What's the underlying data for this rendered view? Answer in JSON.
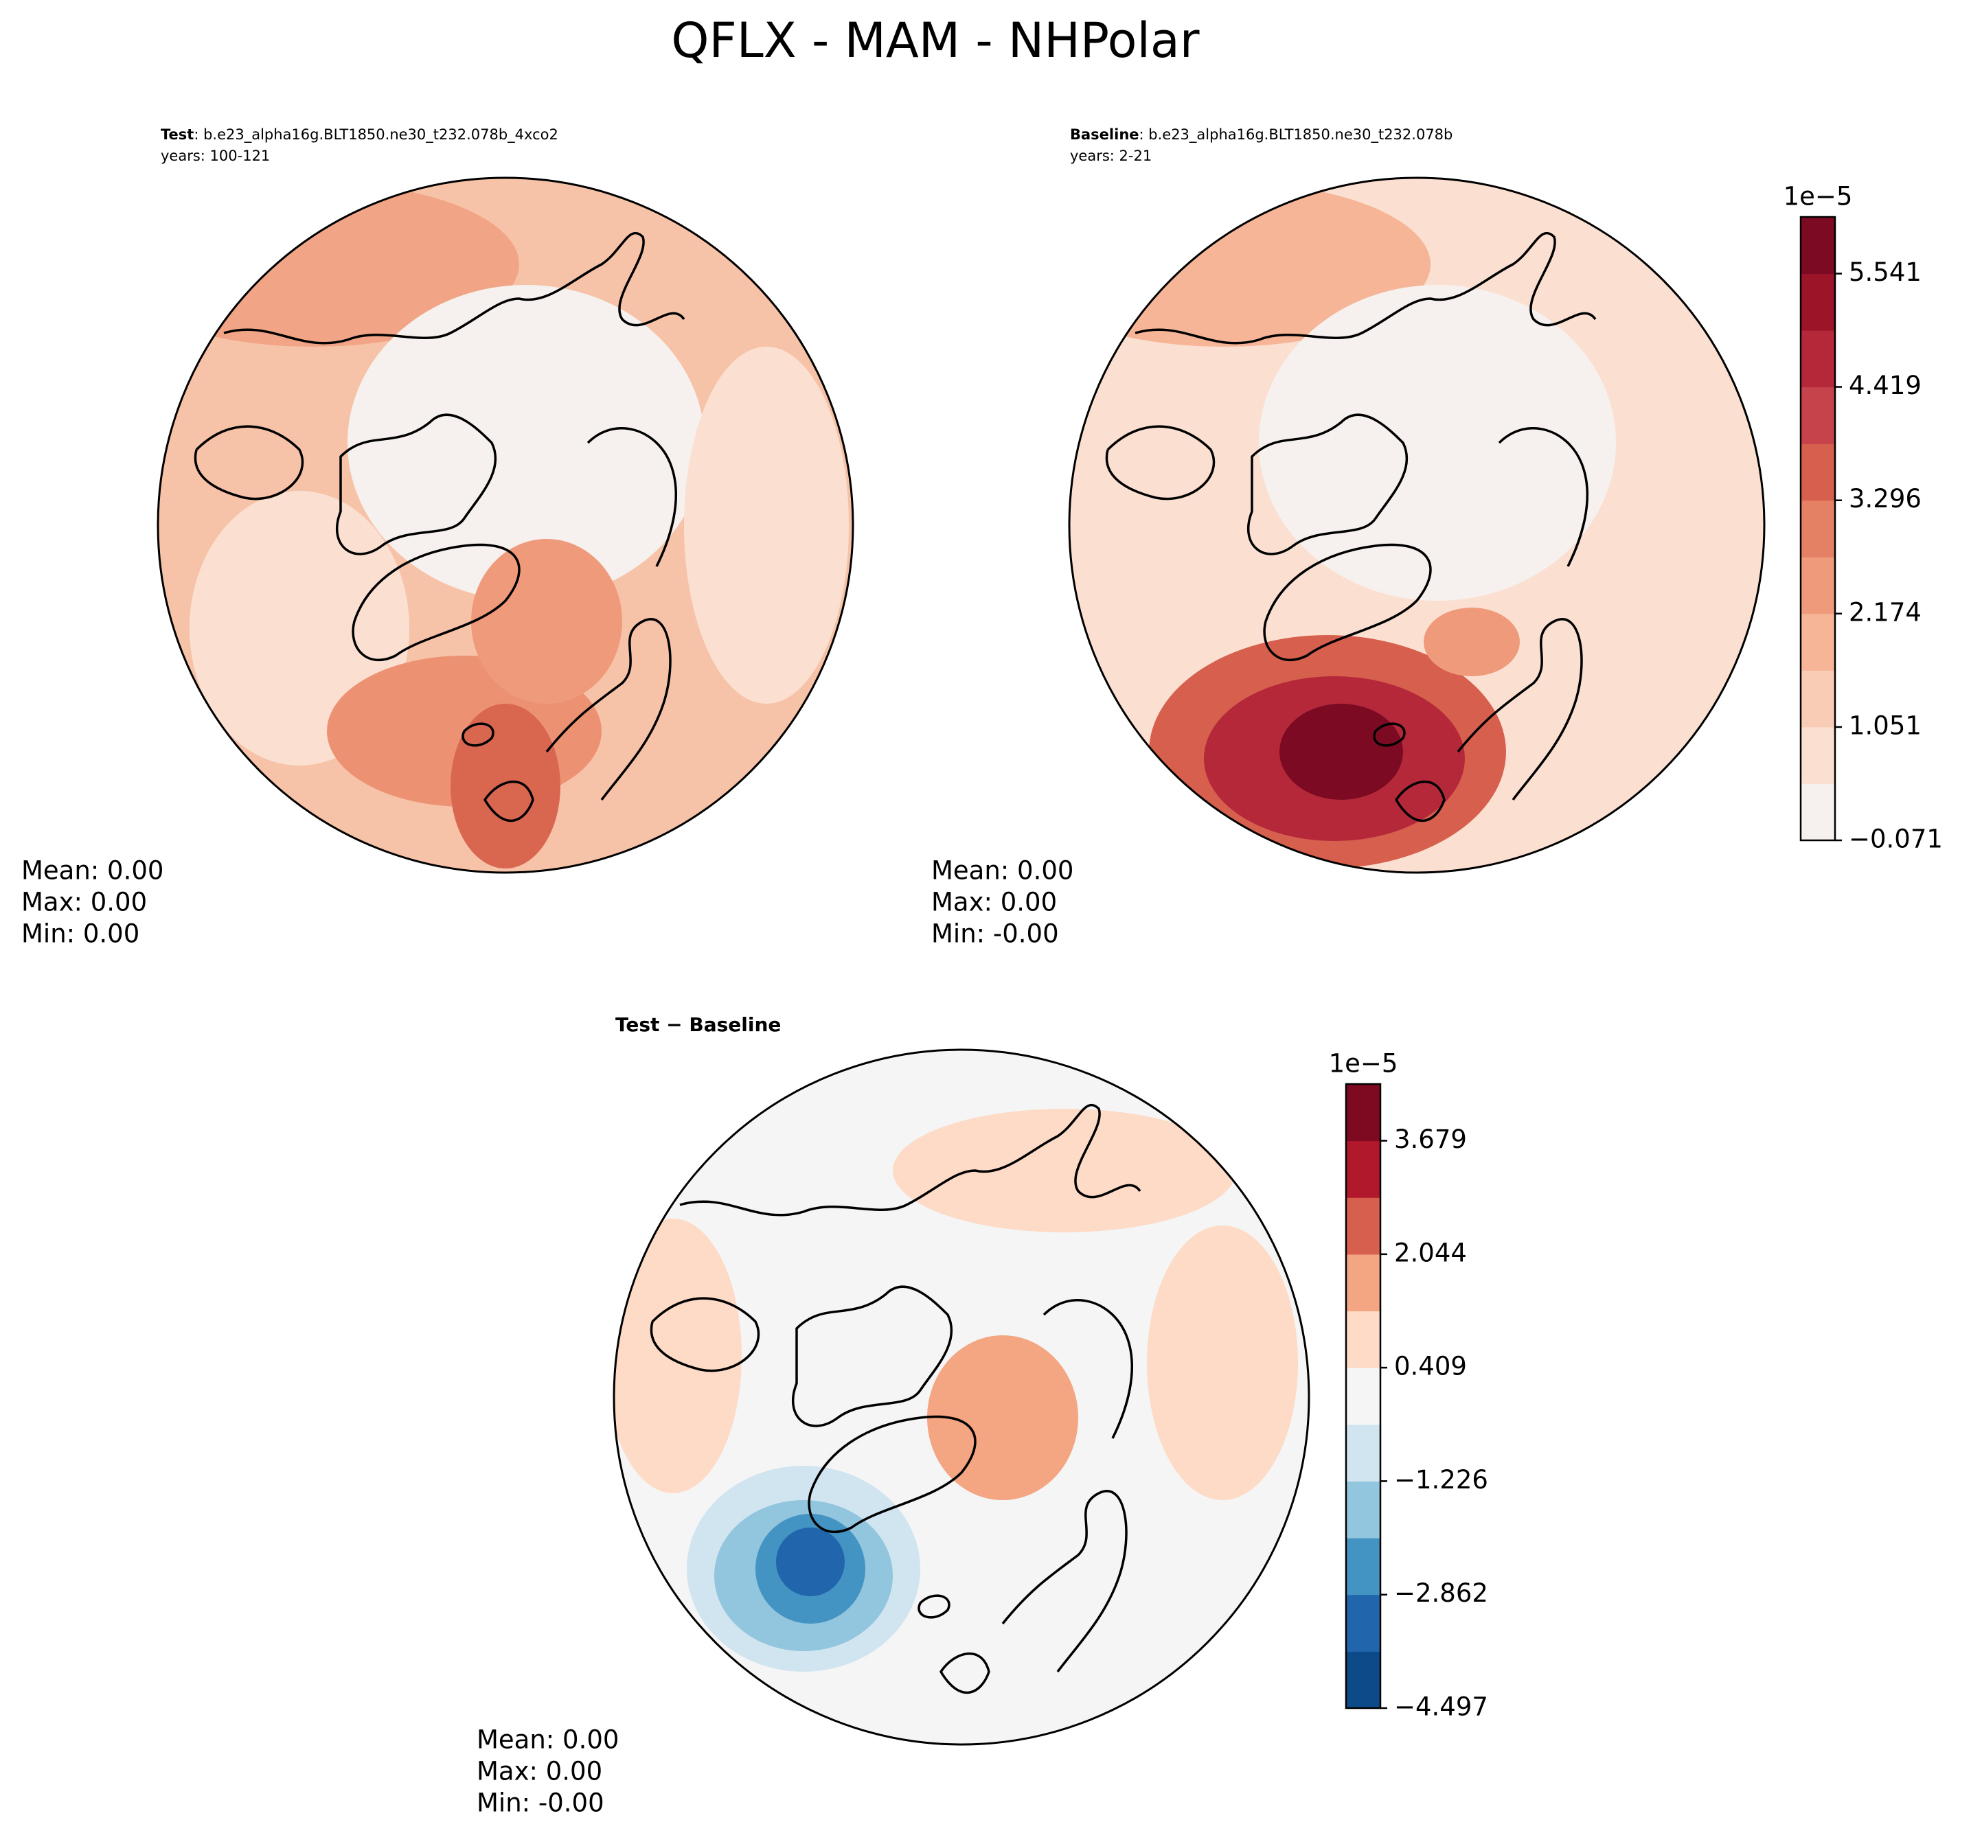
{
  "title": "QFLX - MAM - NHPolar",
  "panels": [
    {
      "label": "Test",
      "case": ": b.e23_alpha16g.BLT1850.ne30_t232.078b_4xco2",
      "years": "years: 100-121",
      "stats": [
        "Mean:  0.00",
        "Max:  0.00",
        "Min:  0.00"
      ]
    },
    {
      "label": "Baseline",
      "case": ": b.e23_alpha16g.BLT1850.ne30_t232.078b",
      "years": "years: 2-21",
      "stats": [
        "Mean:  0.00",
        "Max:  0.00",
        "Min: -0.00"
      ]
    },
    {
      "label": "Test − Baseline",
      "stats": [
        "Mean:  0.00",
        "Max:  0.00",
        "Min: -0.00"
      ]
    }
  ],
  "colorbars": [
    {
      "exponent": "1e−5",
      "lim": [
        -0.071,
        6.102
      ],
      "ticks": [
        {
          "value": -0.071,
          "label": "−0.071"
        },
        1.051,
        2.174,
        3.296,
        4.419,
        5.541
      ],
      "colors": [
        "#f6f1ee",
        "#fbe0d2",
        "#f9ccb5",
        "#f6b597",
        "#ef9b7b",
        "#e48064",
        "#d6604d",
        "#c6434b",
        "#b4283a",
        "#9c1428",
        "#7b0a22"
      ]
    },
    {
      "exponent": "1e−5",
      "lim": [
        -4.497,
        4.496
      ],
      "ticks": [
        {
          "value": -4.497,
          "label": "−4.497"
        },
        {
          "value": -2.862,
          "label": "−2.862"
        },
        {
          "value": -1.226,
          "label": "−1.226"
        },
        0.409,
        2.044,
        3.679
      ],
      "colors": [
        "#0d4a8a",
        "#2166ac",
        "#4393c3",
        "#92c5de",
        "#d1e5f0",
        "#f5f5f5",
        "#fddbc7",
        "#f4a582",
        "#d6604d",
        "#b2182b",
        "#7e0a22"
      ]
    }
  ]
}
